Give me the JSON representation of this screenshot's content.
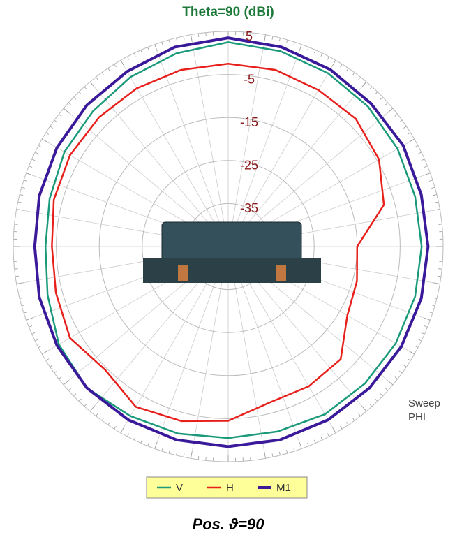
{
  "chart_data": {
    "type": "polar",
    "title": "Theta=90 (dBi)",
    "x": [
      0,
      15,
      30,
      45,
      60,
      75,
      90,
      105,
      120,
      135,
      150,
      165,
      180,
      195,
      210,
      225,
      240,
      255,
      270,
      285,
      300,
      315,
      330,
      345
    ],
    "series": [
      {
        "name": "V",
        "color": "#1a9a7a",
        "values": [
          2.5,
          2,
          1.5,
          1,
          0.5,
          0,
          0,
          0,
          0,
          0,
          0,
          -0.5,
          -0.5,
          0,
          0.5,
          1.5,
          0.5,
          -1.5,
          -2.5,
          -2,
          -1,
          -0.5,
          0.5,
          1.5
        ]
      },
      {
        "name": "H",
        "color": "#e8201c",
        "values": [
          -2.5,
          -2.5,
          -3,
          -3,
          -4.5,
          -7.5,
          -15,
          -14,
          -13,
          -8,
          -7.5,
          -7.5,
          -4.5,
          -3,
          -2,
          -4.5,
          -2.5,
          -3.5,
          -4,
          -3,
          -2.5,
          -2.5,
          -2.5,
          -2.5
        ]
      },
      {
        "name": "M1",
        "color": "#3a1a9a",
        "values": [
          3.5,
          3,
          2.5,
          2,
          2,
          1.5,
          1.5,
          1.5,
          1.5,
          1.5,
          1.5,
          1.5,
          1.5,
          1.5,
          1.5,
          1.5,
          1,
          0.5,
          0,
          0.5,
          1,
          1.5,
          2,
          3
        ]
      }
    ],
    "rlim": [
      -45,
      5
    ],
    "rticks": [
      -35,
      -25,
      -15,
      -5,
      5
    ],
    "sweep_label": [
      "Sweep",
      "PHI"
    ],
    "caption": "Pos. ϑ=90"
  }
}
